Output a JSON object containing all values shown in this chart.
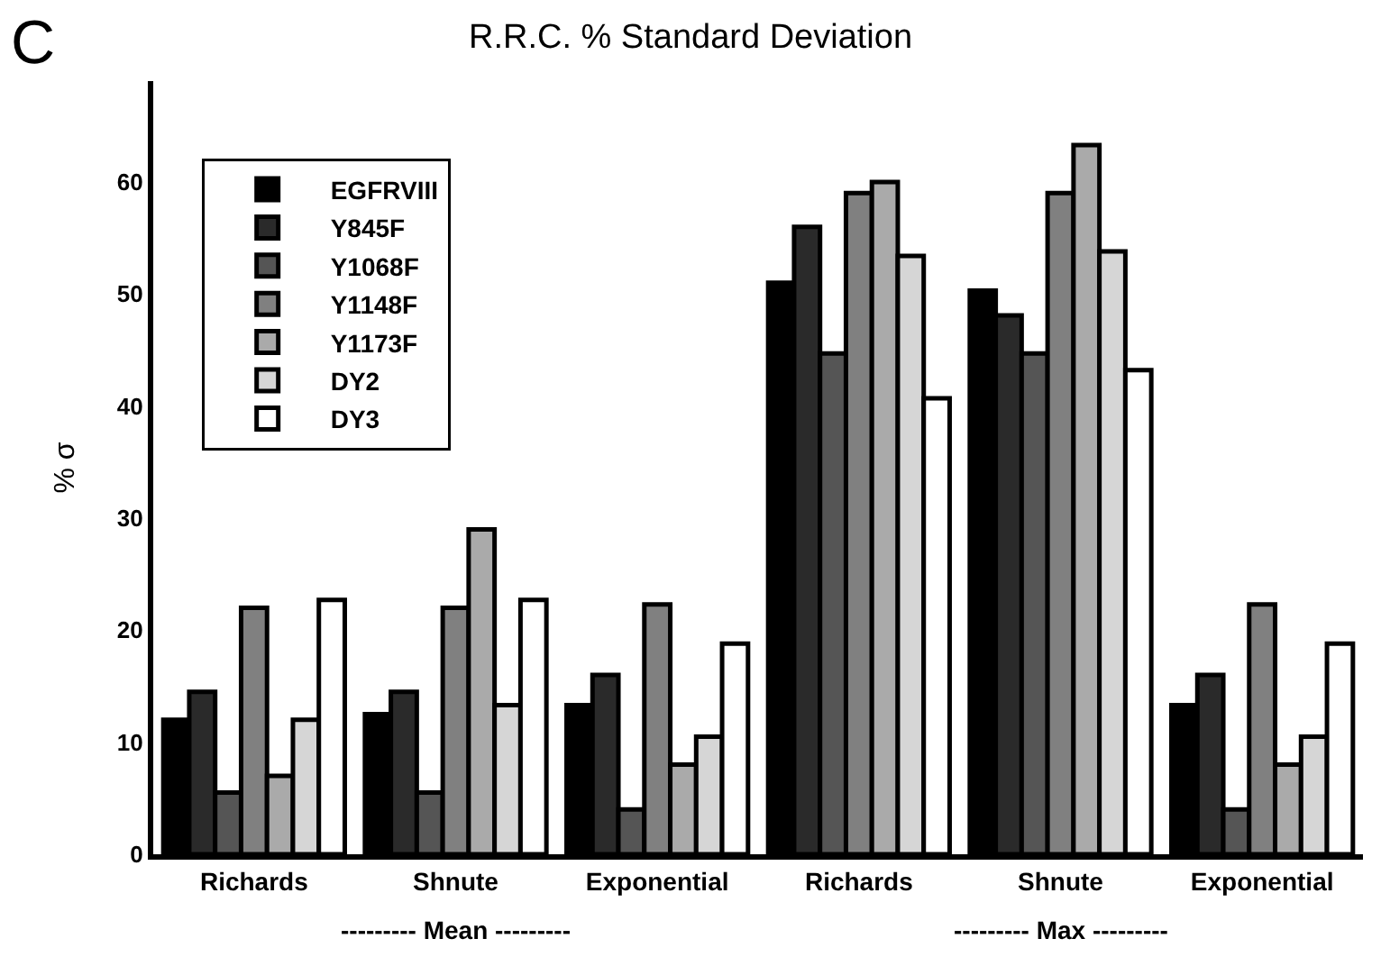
{
  "chart_data": {
    "type": "bar",
    "title": "R.R.C. % Standard Deviation",
    "ylabel": "% σ",
    "categories": [
      "Richards",
      "Shnute",
      "Exponential",
      "Richards",
      "Shnute",
      "Exponential"
    ],
    "series": [
      {
        "name": "EGFRVIII",
        "color": "#000000",
        "values": [
          12,
          12.5,
          13.3,
          51,
          50.3,
          13.3
        ]
      },
      {
        "name": "Y845F",
        "color": "#2a2a2a",
        "values": [
          14.5,
          14.5,
          16,
          56,
          48.1,
          16
        ]
      },
      {
        "name": "Y1068F",
        "color": "#555555",
        "values": [
          5.5,
          5.5,
          4,
          44.7,
          44.7,
          4
        ]
      },
      {
        "name": "Y1148F",
        "color": "#808080",
        "values": [
          22,
          22,
          22.3,
          59,
          59,
          22.3
        ]
      },
      {
        "name": "Y1173F",
        "color": "#aaaaaa",
        "values": [
          7,
          29,
          8,
          60,
          63.3,
          8
        ]
      },
      {
        "name": "DY2",
        "color": "#d6d6d6",
        "values": [
          12,
          13.3,
          10.5,
          53.4,
          53.8,
          10.5
        ]
      },
      {
        "name": "DY3",
        "color": "#ffffff",
        "values": [
          22.7,
          22.7,
          18.8,
          40.7,
          43.2,
          18.8
        ]
      }
    ],
    "ylim": [
      0,
      69
    ],
    "yticks": [
      0,
      10,
      20,
      30,
      40,
      50,
      60
    ],
    "grid": false,
    "legend": "top left",
    "annotations": [
      "C",
      "--------- Mean ---------",
      "--------- Max ---------"
    ]
  }
}
